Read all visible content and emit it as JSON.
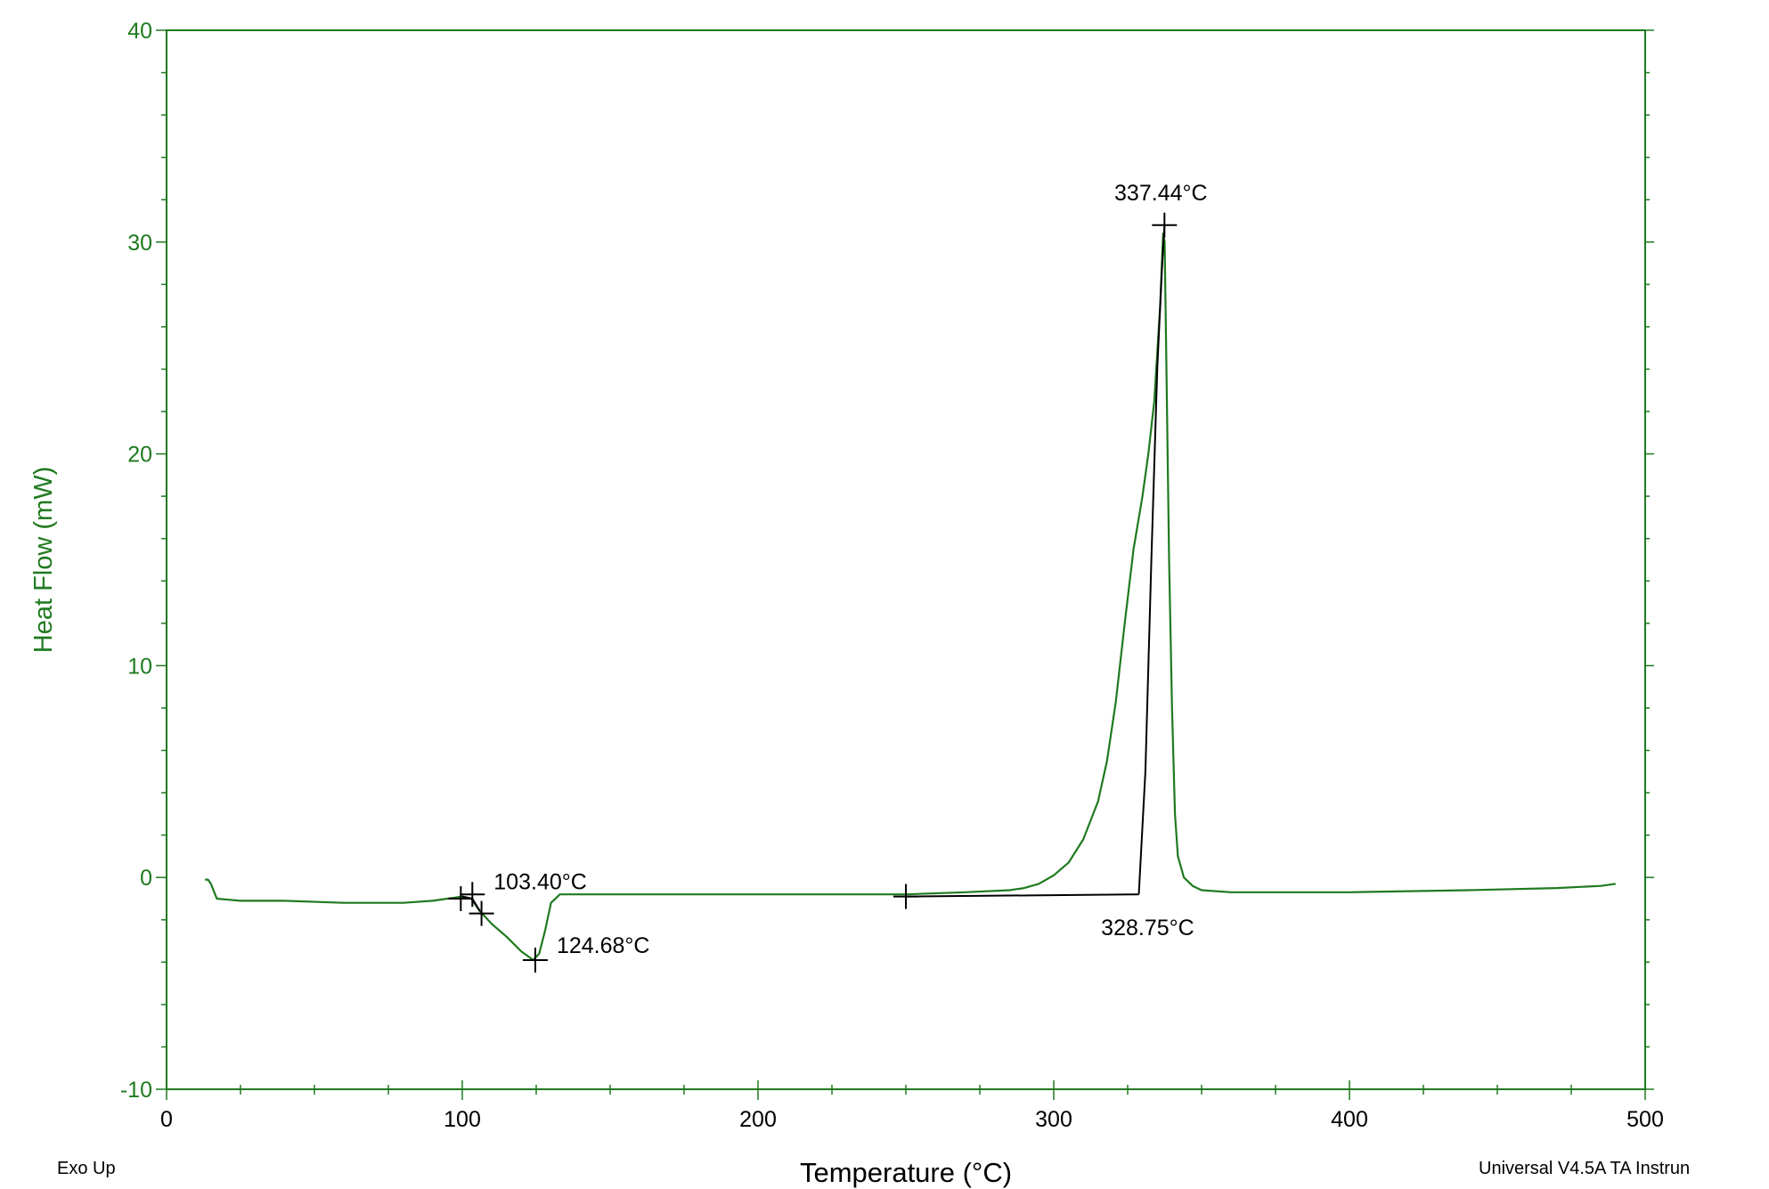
{
  "chart_data": {
    "type": "line",
    "xlabel": "Temperature (°C)",
    "ylabel": "Heat Flow (mW)",
    "xlim": [
      0,
      500
    ],
    "ylim": [
      -10,
      40
    ],
    "x_ticks": [
      "0",
      "100",
      "200",
      "300",
      "400",
      "500"
    ],
    "y_ticks": [
      "-10",
      "0",
      "10",
      "20",
      "30",
      "40"
    ],
    "grid": false,
    "legend": "none",
    "colors": {
      "curve": "#1f7a1f",
      "analysis": "#000000",
      "axis": "#1f7a1f"
    },
    "series": [
      {
        "x": [
          13,
          14,
          15,
          17,
          25,
          40,
          60,
          80,
          90,
          95,
          100,
          103,
          106,
          110,
          115,
          120,
          124,
          126,
          128,
          130,
          133,
          140,
          160,
          190,
          220,
          250,
          270,
          285,
          290,
          295,
          300,
          305,
          310,
          315,
          318,
          321,
          324,
          327,
          330,
          332,
          334,
          336,
          337,
          337.5,
          338,
          339,
          340,
          341,
          342,
          344,
          347,
          350,
          360,
          400,
          440,
          470,
          485,
          490
        ],
        "y": [
          -0.1,
          -0.1,
          -0.3,
          -1.0,
          -1.1,
          -1.1,
          -1.2,
          -1.2,
          -1.1,
          -1.0,
          -0.9,
          -1.0,
          -1.6,
          -2.2,
          -2.8,
          -3.5,
          -3.9,
          -3.6,
          -2.5,
          -1.2,
          -0.8,
          -0.8,
          -0.8,
          -0.8,
          -0.8,
          -0.8,
          -0.7,
          -0.6,
          -0.5,
          -0.3,
          0.1,
          0.7,
          1.8,
          3.6,
          5.5,
          8.3,
          12.0,
          15.5,
          18.0,
          20.0,
          22.5,
          27.0,
          30.4,
          30.0,
          25.0,
          15.0,
          8.0,
          3.0,
          1.0,
          0.0,
          -0.4,
          -0.6,
          -0.7,
          -0.7,
          -0.6,
          -0.5,
          -0.4,
          -0.3
        ]
      }
    ],
    "analysis_lines": [
      {
        "x": [
          100,
          103.4,
          106
        ],
        "y": [
          -0.9,
          -1.0,
          -1.6
        ]
      },
      {
        "x": [
          250,
          328.75
        ],
        "y": [
          -0.9,
          -0.8
        ]
      },
      {
        "x": [
          328.75,
          331,
          333,
          335,
          336.5,
          337.44
        ],
        "y": [
          -0.8,
          5.0,
          15.0,
          24.0,
          28.5,
          30.8
        ]
      }
    ],
    "markers": [
      {
        "x": 99.5,
        "y": -1.0
      },
      {
        "x": 103.4,
        "y": -0.8
      },
      {
        "x": 106.5,
        "y": -1.7
      },
      {
        "x": 124.68,
        "y": -3.9
      },
      {
        "x": 250,
        "y": -0.9
      },
      {
        "x": 337.44,
        "y": 30.8
      }
    ],
    "annotations": [
      {
        "text": "103.40°C",
        "x": 103.4,
        "y": -0.9,
        "anchor": "right"
      },
      {
        "text": "124.68°C",
        "x": 124.68,
        "y": -3.9,
        "anchor": "right"
      },
      {
        "text": "328.75°C",
        "x": 328.75,
        "y": -0.8,
        "anchor": "below"
      },
      {
        "text": "337.44°C",
        "x": 337.44,
        "y": 30.8,
        "anchor": "above"
      }
    ],
    "corner_left": "Exo Up",
    "corner_right": "Universal V4.5A TA Instrun"
  }
}
